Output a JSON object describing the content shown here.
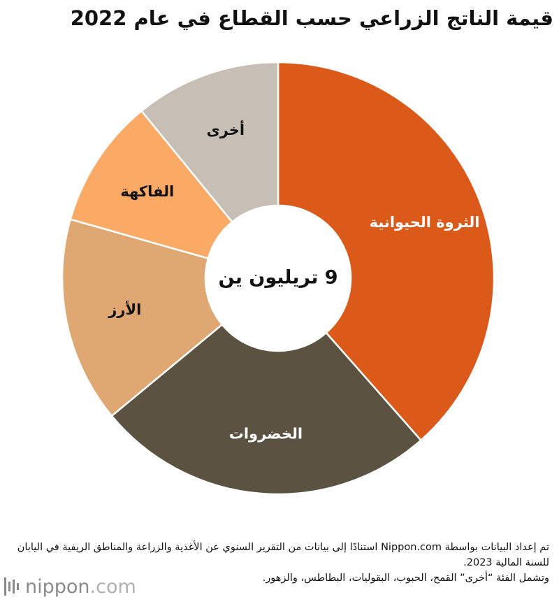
{
  "chart_data": {
    "type": "pie",
    "title": "قيمة الناتج الزراعي حسب القطاع في عام 2022",
    "center_label": "9 تريليون ين",
    "slices": [
      {
        "label": "الثروة الحيوانية",
        "value": 38.5,
        "color": "#DB5A1A"
      },
      {
        "label": "الخضروات",
        "value": 25.5,
        "color": "#5C5242"
      },
      {
        "label": "الأرز",
        "value": 15.4,
        "color": "#DFA873"
      },
      {
        "label": "الفاكهة",
        "value": 9.7,
        "color": "#FBAA66"
      },
      {
        "label": "أخرى",
        "value": 10.9,
        "color": "#C7BFB6"
      }
    ],
    "label_colors": {
      "light": "#ffffff",
      "dark": "#111111"
    }
  },
  "footnote": {
    "line1": "تم إعداد البيانات بواسطة Nippon.com استنادًا إلى بيانات من التقرير السنوي عن الأغذية والزراعة والمناطق الريفية في اليابان للسنة المالية 2023.",
    "line2": "وتشمل الفئة “أخرى” القمح، الحبوب، البقوليات، البطاطس، والزهور."
  },
  "logo": {
    "name": "nippon",
    "domain": ".com"
  }
}
